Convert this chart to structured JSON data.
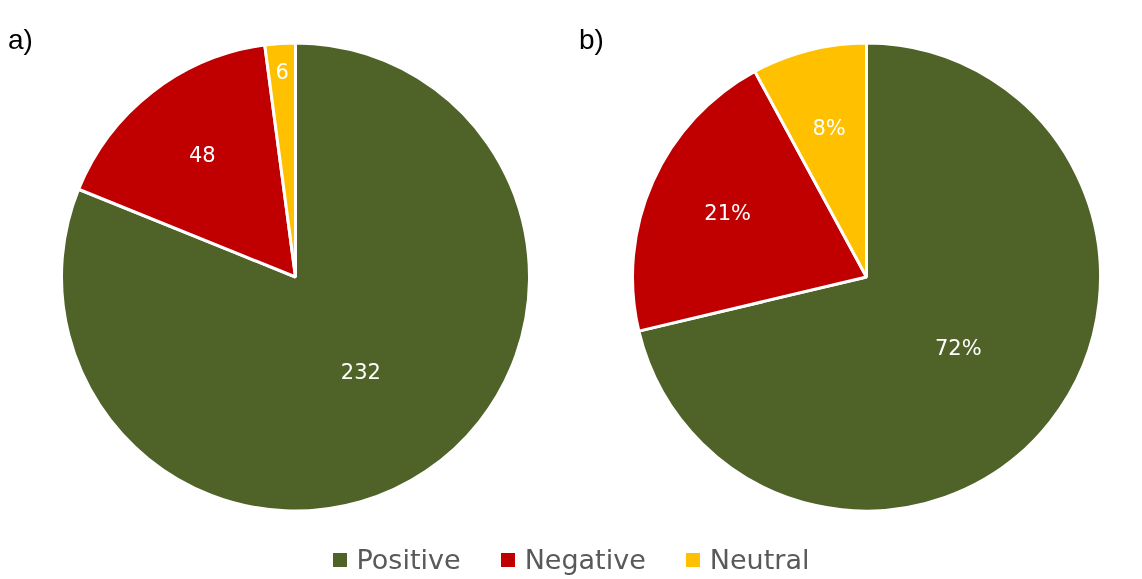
{
  "chart_data": [
    {
      "type": "pie",
      "title": "a)",
      "categories": [
        "Positive",
        "Negative",
        "Neutral"
      ],
      "values": [
        232,
        48,
        6
      ],
      "colors": [
        "#4f6228",
        "#c00000",
        "#ffc000"
      ],
      "value_labels": [
        "232",
        "48",
        "6"
      ],
      "legend": "bottom"
    },
    {
      "type": "pie",
      "title": "b)",
      "categories": [
        null,
        null,
        null
      ],
      "values": [
        72,
        21,
        8
      ],
      "colors": [
        "#4f6228",
        "#c00000",
        "#ffc000"
      ],
      "value_labels": [
        "72%",
        "21%",
        "8%"
      ],
      "legend": false
    }
  ]
}
